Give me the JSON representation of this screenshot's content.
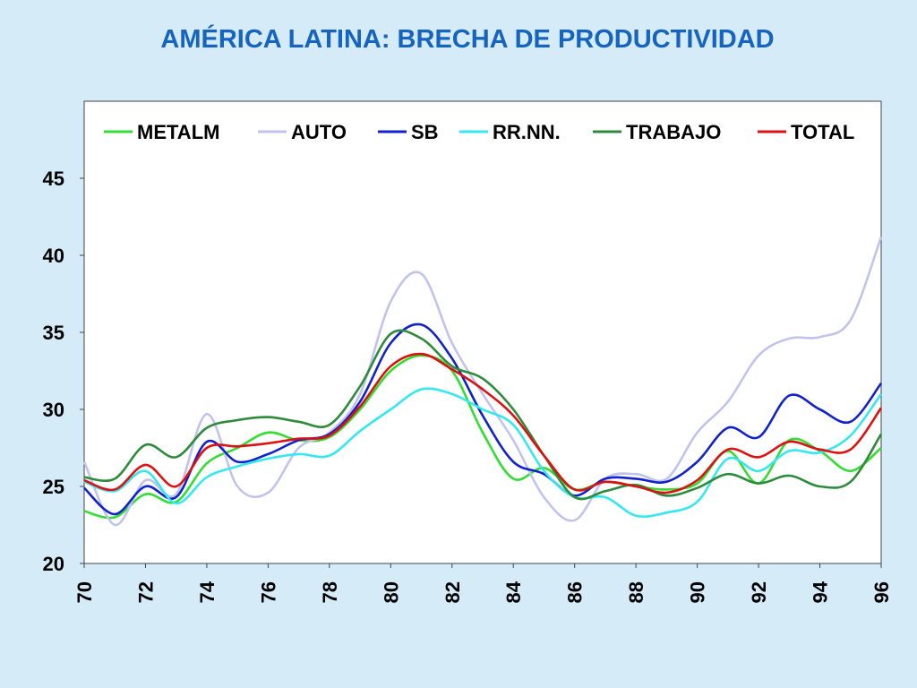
{
  "title": "AMÉRICA LATINA: BRECHA DE PRODUCTIVIDAD",
  "chart_data": {
    "type": "line",
    "title": "AMÉRICA LATINA: BRECHA DE PRODUCTIVIDAD",
    "xlabel": "",
    "ylabel": "",
    "xlim": [
      1970,
      1996
    ],
    "ylim": [
      20,
      50
    ],
    "yticks": [
      20,
      25,
      30,
      35,
      40,
      45
    ],
    "ytick_labels": [
      "20",
      "25",
      "30",
      "35",
      "40",
      "45"
    ],
    "xticks": [
      1970,
      1972,
      1974,
      1976,
      1978,
      1980,
      1982,
      1984,
      1986,
      1988,
      1990,
      1992,
      1994,
      1996
    ],
    "xtick_labels": [
      "70",
      "72",
      "74",
      "76",
      "78",
      "80",
      "82",
      "84",
      "86",
      "88",
      "90",
      "92",
      "94",
      "96"
    ],
    "grid": false,
    "legend_position": "top",
    "series": [
      {
        "name": "METALM",
        "color": "#33dd33",
        "x": [
          1970,
          1971,
          1972,
          1973,
          1974,
          1975,
          1976,
          1977,
          1978,
          1979,
          1980,
          1981,
          1982,
          1983,
          1984,
          1985,
          1986,
          1987,
          1988,
          1989,
          1990,
          1991,
          1992,
          1993,
          1994,
          1995,
          1996
        ],
        "y": [
          23.4,
          23.0,
          24.5,
          24.0,
          26.5,
          27.5,
          28.5,
          28.0,
          28.2,
          30.0,
          32.5,
          33.5,
          32.5,
          28.5,
          25.5,
          26.2,
          24.8,
          25.3,
          25.0,
          24.8,
          25.2,
          27.3,
          25.2,
          28.0,
          27.3,
          26.0,
          27.5
        ]
      },
      {
        "name": "AUTO",
        "color": "#c0c4ec",
        "x": [
          1970,
          1971,
          1972,
          1973,
          1974,
          1975,
          1976,
          1977,
          1978,
          1979,
          1980,
          1981,
          1982,
          1983,
          1984,
          1985,
          1986,
          1987,
          1988,
          1989,
          1990,
          1991,
          1992,
          1993,
          1994,
          1995,
          1996
        ],
        "y": [
          26.6,
          22.5,
          25.4,
          24.5,
          29.7,
          25.0,
          24.6,
          27.5,
          28.5,
          31.0,
          37.0,
          38.8,
          34.3,
          31.0,
          28.0,
          24.3,
          22.8,
          25.5,
          25.8,
          25.5,
          28.5,
          30.5,
          33.5,
          34.6,
          34.7,
          35.8,
          41.2
        ]
      },
      {
        "name": "SB",
        "color": "#1122cc",
        "x": [
          1970,
          1971,
          1972,
          1973,
          1974,
          1975,
          1976,
          1977,
          1978,
          1979,
          1980,
          1981,
          1982,
          1983,
          1984,
          1985,
          1986,
          1987,
          1988,
          1989,
          1990,
          1991,
          1992,
          1993,
          1994,
          1995,
          1996
        ],
        "y": [
          24.9,
          23.2,
          25.0,
          24.3,
          27.9,
          26.6,
          27.1,
          28.0,
          28.4,
          30.5,
          34.3,
          35.5,
          33.3,
          29.6,
          26.6,
          25.8,
          24.4,
          25.5,
          25.5,
          25.3,
          26.6,
          28.8,
          28.2,
          30.9,
          30.0,
          29.2,
          31.7
        ]
      },
      {
        "name": "RR.NN.",
        "color": "#33e8f0",
        "x": [
          1970,
          1971,
          1972,
          1973,
          1974,
          1975,
          1976,
          1977,
          1978,
          1979,
          1980,
          1981,
          1982,
          1983,
          1984,
          1985,
          1986,
          1987,
          1988,
          1989,
          1990,
          1991,
          1992,
          1993,
          1994,
          1995,
          1996
        ],
        "y": [
          25.3,
          24.7,
          26.0,
          23.9,
          25.6,
          26.3,
          26.8,
          27.1,
          27.0,
          28.6,
          30.0,
          31.3,
          31.0,
          30.0,
          29.0,
          26.0,
          24.3,
          24.3,
          23.1,
          23.3,
          24.0,
          26.8,
          26.0,
          27.3,
          27.2,
          28.3,
          31.0
        ]
      },
      {
        "name": "TRABAJO",
        "color": "#2e8b3c",
        "x": [
          1970,
          1971,
          1972,
          1973,
          1974,
          1975,
          1976,
          1977,
          1978,
          1979,
          1980,
          1981,
          1982,
          1983,
          1984,
          1985,
          1986,
          1987,
          1988,
          1989,
          1990,
          1991,
          1992,
          1993,
          1994,
          1995,
          1996
        ],
        "y": [
          25.6,
          25.5,
          27.7,
          26.9,
          28.8,
          29.3,
          29.5,
          29.2,
          29.0,
          31.5,
          34.9,
          34.6,
          32.8,
          32.0,
          30.0,
          27.0,
          24.3,
          24.7,
          25.1,
          24.4,
          24.9,
          25.8,
          25.2,
          25.7,
          25.0,
          25.3,
          28.4
        ]
      },
      {
        "name": "TOTAL",
        "color": "#dd1111",
        "x": [
          1970,
          1971,
          1972,
          1973,
          1974,
          1975,
          1976,
          1977,
          1978,
          1979,
          1980,
          1981,
          1982,
          1983,
          1984,
          1985,
          1986,
          1987,
          1988,
          1989,
          1990,
          1991,
          1992,
          1993,
          1994,
          1995,
          1996
        ],
        "y": [
          25.4,
          24.8,
          26.4,
          25.0,
          27.5,
          27.6,
          27.8,
          28.1,
          28.3,
          30.2,
          32.8,
          33.6,
          32.6,
          31.3,
          29.6,
          27.0,
          24.8,
          25.3,
          25.0,
          24.6,
          25.4,
          27.4,
          26.9,
          27.9,
          27.4,
          27.4,
          30.1
        ]
      }
    ]
  }
}
